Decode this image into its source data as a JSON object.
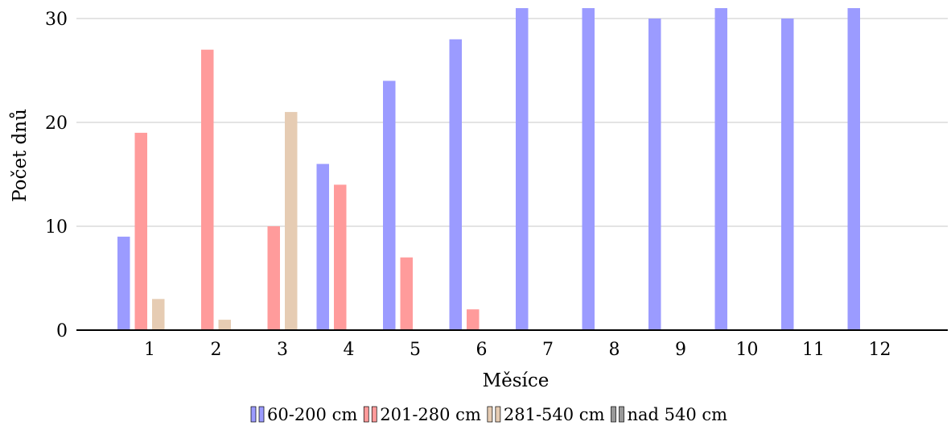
{
  "chart_data": {
    "type": "bar",
    "xlabel": "Měsíce",
    "ylabel": "Počet dnů",
    "categories": [
      "1",
      "2",
      "3",
      "4",
      "5",
      "6",
      "7",
      "8",
      "9",
      "10",
      "11",
      "12"
    ],
    "ylim": [
      0,
      31
    ],
    "yticks": [
      "0",
      "10",
      "20",
      "30"
    ],
    "grid": "horizontal",
    "legend_position": "bottom",
    "series": [
      {
        "name": "60-200 cm",
        "color": "#9b9bff",
        "values": [
          9,
          0,
          0,
          16,
          24,
          28,
          31,
          31,
          30,
          31,
          30,
          31
        ]
      },
      {
        "name": "201-280 cm",
        "color": "#ff9b9b",
        "values": [
          19,
          27,
          10,
          14,
          7,
          2,
          0,
          0,
          0,
          0,
          0,
          0
        ]
      },
      {
        "name": "281-540 cm",
        "color": "#e6ccb3",
        "values": [
          3,
          1,
          21,
          0,
          0,
          0,
          0,
          0,
          0,
          0,
          0,
          0
        ]
      },
      {
        "name": "nad 540 cm",
        "color": "#999999",
        "values": [
          0,
          0,
          0,
          0,
          0,
          0,
          0,
          0,
          0,
          0,
          0,
          0
        ]
      }
    ]
  }
}
